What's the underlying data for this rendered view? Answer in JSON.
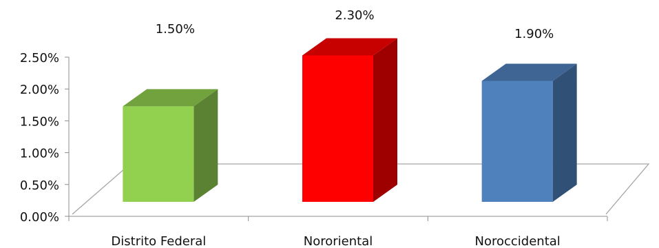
{
  "chart_data": {
    "type": "bar",
    "style": "3d-column",
    "categories": [
      "Distrito Federal",
      "Nororiental",
      "Noroccidental"
    ],
    "values": [
      1.5,
      2.3,
      1.9
    ],
    "data_labels": [
      "1.50%",
      "2.30%",
      "1.90%"
    ],
    "colors": [
      "#92D050",
      "#FF0000",
      "#4F81BD"
    ],
    "y_ticks": [
      0,
      0.5,
      1.0,
      1.5,
      2.0,
      2.5
    ],
    "y_tick_labels": [
      "0.00%",
      "0.50%",
      "1.00%",
      "1.50%",
      "2.00%",
      "2.50%"
    ],
    "ylim": [
      0,
      2.5
    ],
    "grid": false,
    "legend": "none"
  }
}
